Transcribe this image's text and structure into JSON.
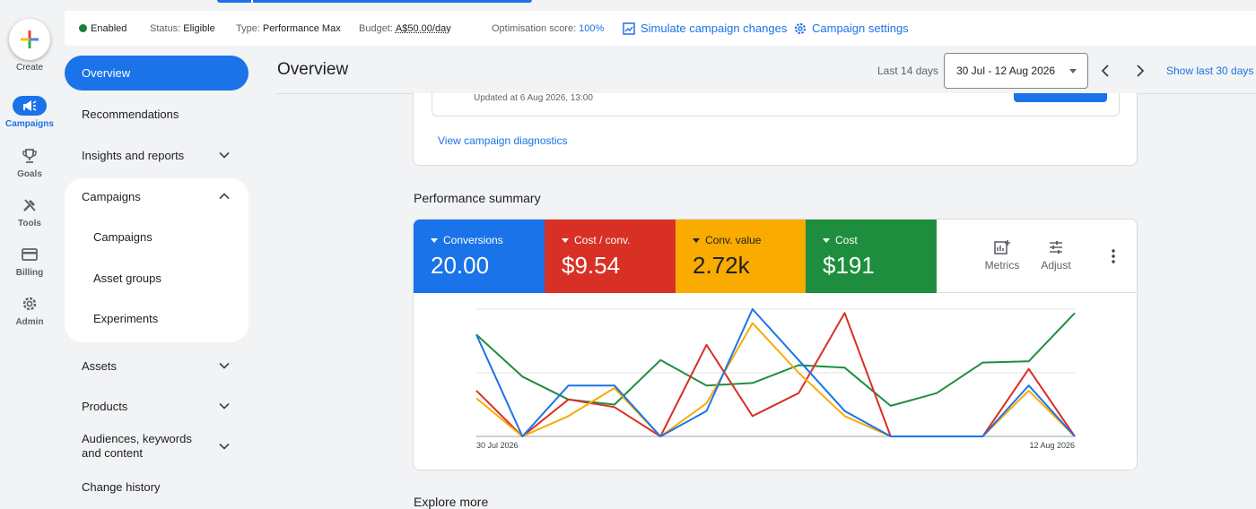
{
  "rail": {
    "create_label": "Create",
    "items": [
      {
        "label": "Campaigns",
        "icon": "megaphone-icon",
        "active": true
      },
      {
        "label": "Goals",
        "icon": "trophy-icon"
      },
      {
        "label": "Tools",
        "icon": "tools-icon"
      },
      {
        "label": "Billing",
        "icon": "credit-card-icon"
      },
      {
        "label": "Admin",
        "icon": "gear-icon"
      }
    ]
  },
  "statusbar": {
    "enabled": "Enabled",
    "status_label": "Status:",
    "status_value": "Eligible",
    "type_label": "Type:",
    "type_value": "Performance Max",
    "budget_label": "Budget:",
    "budget_value": "A$50.00/day",
    "opt_label": "Optimisation score:",
    "opt_value": "100%",
    "simulate_label": "Simulate campaign changes",
    "settings_label": "Campaign settings",
    "enabled_color": "#188038"
  },
  "nav": {
    "overview": "Overview",
    "recommendations": "Recommendations",
    "insights": "Insights and reports",
    "campaigns_group": "Campaigns",
    "sub": [
      "Campaigns",
      "Asset groups",
      "Experiments"
    ],
    "assets": "Assets",
    "products": "Products",
    "audiences": "Audiences, keywords and content",
    "change_history": "Change history"
  },
  "header": {
    "title": "Overview",
    "last_days": "Last 14 days",
    "date_range": "30 Jul - 12 Aug 2026",
    "show_last": "Show last 30 days"
  },
  "top_card": {
    "updated": "Updated at 6 Aug 2026, 13:00",
    "diagnostics_link": "View campaign diagnostics"
  },
  "performance": {
    "title": "Performance summary",
    "metrics": [
      {
        "label": "Conversions",
        "value": "20.00",
        "color": "#1a73e8"
      },
      {
        "label": "Cost / conv.",
        "value": "$9.54",
        "color": "#d93025"
      },
      {
        "label": "Conv. value",
        "value": "2.72k",
        "color": "#f9ab00"
      },
      {
        "label": "Cost",
        "value": "$191",
        "color": "#1e8e3e"
      }
    ],
    "metrics_button": "Metrics",
    "adjust_button": "Adjust"
  },
  "chart_data": {
    "type": "line",
    "x_labels": [
      "30 Jul 2026",
      "12 Aug 2026"
    ],
    "x": [
      1,
      2,
      3,
      4,
      5,
      6,
      7,
      8,
      9,
      10,
      11,
      12,
      13,
      14
    ],
    "ylim": [
      0,
      1
    ],
    "grid": true,
    "series": [
      {
        "color": "#1a73e8",
        "values": [
          0.8,
          0.0,
          0.4,
          0.4,
          0.0,
          0.2,
          1.0,
          0.6,
          0.2,
          0.0,
          0.0,
          0.0,
          0.4,
          0.0
        ]
      },
      {
        "color": "#d93025",
        "values": [
          0.36,
          0.0,
          0.29,
          0.23,
          0.0,
          0.72,
          0.16,
          0.34,
          0.97,
          0.0,
          0.0,
          0.0,
          0.53,
          0.0
        ]
      },
      {
        "color": "#f9ab00",
        "values": [
          0.3,
          0.0,
          0.16,
          0.38,
          0.0,
          0.26,
          0.89,
          0.5,
          0.16,
          0.0,
          0.0,
          0.0,
          0.36,
          0.0
        ]
      },
      {
        "color": "#1e8e3e",
        "values": [
          0.8,
          0.47,
          0.29,
          0.25,
          0.6,
          0.4,
          0.42,
          0.56,
          0.54,
          0.24,
          0.34,
          0.58,
          0.59,
          0.97
        ]
      }
    ]
  },
  "explore_title": "Explore more"
}
